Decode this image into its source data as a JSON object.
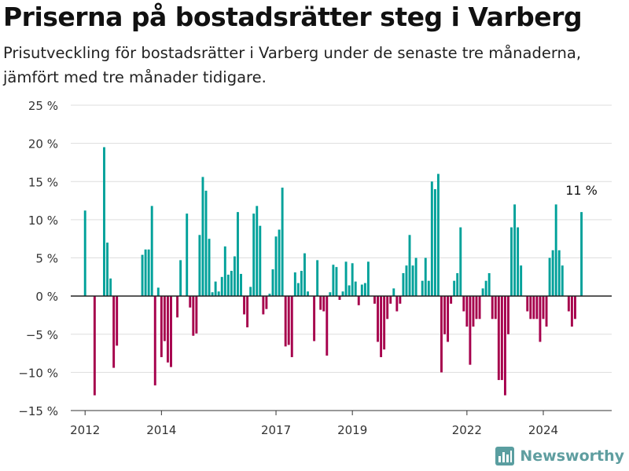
{
  "title": "Priserna på bostadsrätter steg i Varberg",
  "subtitle": "Prisutveckling för bostadsrätter i Varberg under de senaste tre månaderna, jämfört med tre månader tidigare.",
  "brand": {
    "name": "Newsworthy",
    "icon": "bar-chart-logo-icon",
    "color": "#5a9ea0"
  },
  "chart_data": {
    "type": "bar",
    "colors": {
      "positive": "#00a19a",
      "negative": "#a6004c",
      "zero_line": "#222222",
      "grid": "#dddddd"
    },
    "ylim": [
      -15,
      25
    ],
    "y_ticks": [
      {
        "value": 25,
        "label": "25 %"
      },
      {
        "value": 20,
        "label": "20 %"
      },
      {
        "value": 15,
        "label": "15 %"
      },
      {
        "value": 10,
        "label": "10 %"
      },
      {
        "value": 5,
        "label": "5 %"
      },
      {
        "value": 0,
        "label": "0 %"
      },
      {
        "value": -5,
        "label": "−5 %"
      },
      {
        "value": -10,
        "label": "−10 %"
      },
      {
        "value": -15,
        "label": "−15 %"
      }
    ],
    "x_range": [
      "2011-09",
      "2025-10"
    ],
    "x_ticks": [
      {
        "month": "2012-01",
        "label": "2012"
      },
      {
        "month": "2014-01",
        "label": "2014"
      },
      {
        "month": "2017-01",
        "label": "2017"
      },
      {
        "month": "2019-01",
        "label": "2019"
      },
      {
        "month": "2022-01",
        "label": "2022"
      },
      {
        "month": "2024-01",
        "label": "2024"
      }
    ],
    "annotation": {
      "text": "11 %",
      "month": "2025-01",
      "value": 11
    },
    "series": [
      {
        "points": [
          [
            "2012-01",
            11.2
          ],
          [
            "2012-04",
            -13
          ],
          [
            "2012-07",
            19.5
          ],
          [
            "2012-08",
            7
          ],
          [
            "2012-09",
            2.3
          ],
          [
            "2012-10",
            -9.4
          ],
          [
            "2012-11",
            -6.5
          ],
          [
            "2013-07",
            5.4
          ],
          [
            "2013-08",
            6.1
          ],
          [
            "2013-09",
            6.1
          ],
          [
            "2013-10",
            11.8
          ],
          [
            "2013-11",
            -11.7
          ],
          [
            "2013-12",
            1.1
          ],
          [
            "2014-01",
            -8.0
          ],
          [
            "2014-02",
            -5.9
          ],
          [
            "2014-03",
            -8.7
          ],
          [
            "2014-04",
            -9.3
          ],
          [
            "2014-05",
            0.0
          ],
          [
            "2014-06",
            -2.8
          ],
          [
            "2014-07",
            4.7
          ],
          [
            "2014-09",
            10.8
          ],
          [
            "2014-10",
            -1.5
          ],
          [
            "2014-11",
            -5.2
          ],
          [
            "2014-12",
            -4.9
          ],
          [
            "2015-01",
            8.0
          ],
          [
            "2015-02",
            15.6
          ],
          [
            "2015-03",
            13.8
          ],
          [
            "2015-04",
            7.5
          ],
          [
            "2015-05",
            0.5
          ],
          [
            "2015-06",
            1.9
          ],
          [
            "2015-07",
            0.6
          ],
          [
            "2015-08",
            2.5
          ],
          [
            "2015-09",
            6.5
          ],
          [
            "2015-10",
            2.8
          ],
          [
            "2015-11",
            3.3
          ],
          [
            "2015-12",
            5.2
          ],
          [
            "2016-01",
            11.0
          ],
          [
            "2016-02",
            2.9
          ],
          [
            "2016-03",
            -2.4
          ],
          [
            "2016-04",
            -4.1
          ],
          [
            "2016-05",
            1.2
          ],
          [
            "2016-06",
            10.8
          ],
          [
            "2016-07",
            11.8
          ],
          [
            "2016-08",
            9.2
          ],
          [
            "2016-09",
            -2.4
          ],
          [
            "2016-10",
            -1.7
          ],
          [
            "2016-11",
            0.3
          ],
          [
            "2016-12",
            3.5
          ],
          [
            "2017-01",
            7.8
          ],
          [
            "2017-02",
            8.7
          ],
          [
            "2017-03",
            14.2
          ],
          [
            "2017-04",
            -6.6
          ],
          [
            "2017-05",
            -6.4
          ],
          [
            "2017-06",
            -8.0
          ],
          [
            "2017-07",
            3.1
          ],
          [
            "2017-08",
            1.7
          ],
          [
            "2017-09",
            3.3
          ],
          [
            "2017-10",
            5.6
          ],
          [
            "2017-11",
            0.6
          ],
          [
            "2018-01",
            -5.9
          ],
          [
            "2018-02",
            4.7
          ],
          [
            "2018-03",
            -1.8
          ],
          [
            "2018-04",
            -2.0
          ],
          [
            "2018-05",
            -7.8
          ],
          [
            "2018-06",
            0.5
          ],
          [
            "2018-07",
            4.1
          ],
          [
            "2018-08",
            3.8
          ],
          [
            "2018-09",
            -0.5
          ],
          [
            "2018-10",
            0.6
          ],
          [
            "2018-11",
            4.5
          ],
          [
            "2018-12",
            1.4
          ],
          [
            "2019-01",
            4.3
          ],
          [
            "2019-02",
            1.9
          ],
          [
            "2019-03",
            -1.2
          ],
          [
            "2019-04",
            1.5
          ],
          [
            "2019-05",
            1.7
          ],
          [
            "2019-06",
            4.5
          ],
          [
            "2019-07",
            0.0
          ],
          [
            "2019-08",
            -1.0
          ],
          [
            "2019-09",
            -6.0
          ],
          [
            "2019-10",
            -8.0
          ],
          [
            "2019-11",
            -7.0
          ],
          [
            "2019-12",
            -3.0
          ],
          [
            "2020-01",
            -1.0
          ],
          [
            "2020-02",
            1.0
          ],
          [
            "2020-03",
            -2.0
          ],
          [
            "2020-04",
            -1.0
          ],
          [
            "2020-05",
            3.0
          ],
          [
            "2020-06",
            4.0
          ],
          [
            "2020-07",
            8.0
          ],
          [
            "2020-08",
            4.0
          ],
          [
            "2020-09",
            5.0
          ],
          [
            "2020-10",
            0.0
          ],
          [
            "2020-11",
            2.0
          ],
          [
            "2020-12",
            5.0
          ],
          [
            "2021-01",
            2.0
          ],
          [
            "2021-02",
            15.0
          ],
          [
            "2021-03",
            14.0
          ],
          [
            "2021-04",
            16.0
          ],
          [
            "2021-05",
            -10.0
          ],
          [
            "2021-06",
            -5.0
          ],
          [
            "2021-07",
            -6.0
          ],
          [
            "2021-08",
            -1.0
          ],
          [
            "2021-09",
            2.0
          ],
          [
            "2021-10",
            3.0
          ],
          [
            "2021-11",
            9.0
          ],
          [
            "2021-12",
            -2.0
          ],
          [
            "2022-01",
            -4.0
          ],
          [
            "2022-02",
            -9.0
          ],
          [
            "2022-03",
            -4.0
          ],
          [
            "2022-04",
            -3.0
          ],
          [
            "2022-05",
            -3.0
          ],
          [
            "2022-06",
            1.0
          ],
          [
            "2022-07",
            2.0
          ],
          [
            "2022-08",
            3.0
          ],
          [
            "2022-09",
            -3.0
          ],
          [
            "2022-10",
            -3.0
          ],
          [
            "2022-11",
            -11.0
          ],
          [
            "2022-12",
            -11.0
          ],
          [
            "2023-01",
            -13.0
          ],
          [
            "2023-02",
            -5.0
          ],
          [
            "2023-03",
            9.0
          ],
          [
            "2023-04",
            12.0
          ],
          [
            "2023-05",
            9.0
          ],
          [
            "2023-06",
            4.0
          ],
          [
            "2023-07",
            0.0
          ],
          [
            "2023-08",
            -2.0
          ],
          [
            "2023-09",
            -3.0
          ],
          [
            "2023-10",
            -3.0
          ],
          [
            "2023-11",
            -3.0
          ],
          [
            "2023-12",
            -6.0
          ],
          [
            "2024-01",
            -3.0
          ],
          [
            "2024-02",
            -4.0
          ],
          [
            "2024-03",
            5.0
          ],
          [
            "2024-04",
            6.0
          ],
          [
            "2024-05",
            12.0
          ],
          [
            "2024-06",
            6.0
          ],
          [
            "2024-07",
            4.0
          ],
          [
            "2024-08",
            0.0
          ],
          [
            "2024-09",
            -2.0
          ],
          [
            "2024-10",
            -4.0
          ],
          [
            "2024-11",
            -3.0
          ],
          [
            "2024-12",
            0.0
          ],
          [
            "2025-01",
            11.0
          ]
        ]
      }
    ]
  }
}
